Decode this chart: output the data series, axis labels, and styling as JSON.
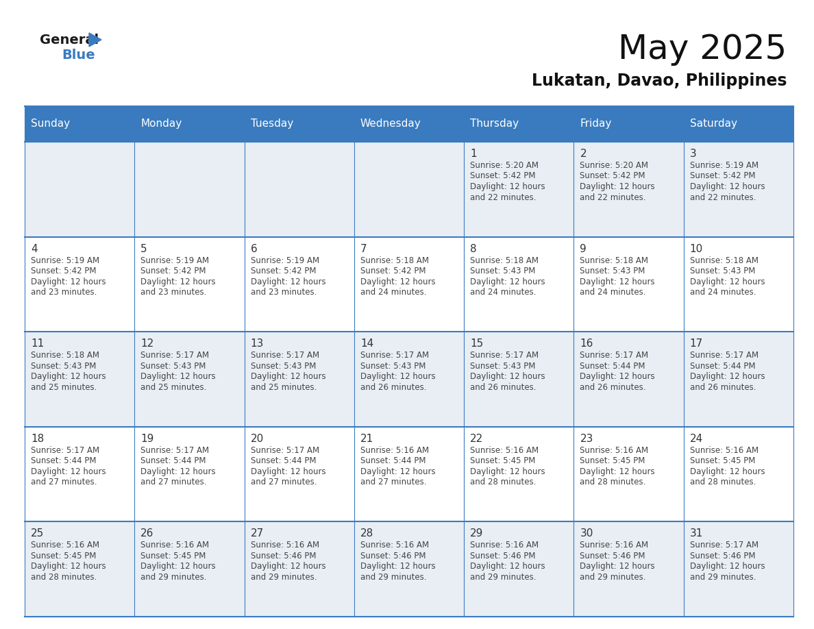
{
  "title": "May 2025",
  "subtitle": "Lukatan, Davao, Philippines",
  "header_bg": "#3a7bbf",
  "header_text": "#ffffff",
  "days_of_week": [
    "Sunday",
    "Monday",
    "Tuesday",
    "Wednesday",
    "Thursday",
    "Friday",
    "Saturday"
  ],
  "row_bg_even": "#e8eef4",
  "row_bg_odd": "#ffffff",
  "cell_border": "#3a7bbf",
  "text_color": "#444444",
  "day_num_color": "#333333",
  "calendar": [
    [
      null,
      null,
      null,
      null,
      {
        "day": 1,
        "sunrise": "5:20 AM",
        "sunset": "5:42 PM",
        "daylight": "12 hours",
        "daylight2": "and 22 minutes."
      },
      {
        "day": 2,
        "sunrise": "5:20 AM",
        "sunset": "5:42 PM",
        "daylight": "12 hours",
        "daylight2": "and 22 minutes."
      },
      {
        "day": 3,
        "sunrise": "5:19 AM",
        "sunset": "5:42 PM",
        "daylight": "12 hours",
        "daylight2": "and 22 minutes."
      }
    ],
    [
      {
        "day": 4,
        "sunrise": "5:19 AM",
        "sunset": "5:42 PM",
        "daylight": "12 hours",
        "daylight2": "and 23 minutes."
      },
      {
        "day": 5,
        "sunrise": "5:19 AM",
        "sunset": "5:42 PM",
        "daylight": "12 hours",
        "daylight2": "and 23 minutes."
      },
      {
        "day": 6,
        "sunrise": "5:19 AM",
        "sunset": "5:42 PM",
        "daylight": "12 hours",
        "daylight2": "and 23 minutes."
      },
      {
        "day": 7,
        "sunrise": "5:18 AM",
        "sunset": "5:42 PM",
        "daylight": "12 hours",
        "daylight2": "and 24 minutes."
      },
      {
        "day": 8,
        "sunrise": "5:18 AM",
        "sunset": "5:43 PM",
        "daylight": "12 hours",
        "daylight2": "and 24 minutes."
      },
      {
        "day": 9,
        "sunrise": "5:18 AM",
        "sunset": "5:43 PM",
        "daylight": "12 hours",
        "daylight2": "and 24 minutes."
      },
      {
        "day": 10,
        "sunrise": "5:18 AM",
        "sunset": "5:43 PM",
        "daylight": "12 hours",
        "daylight2": "and 24 minutes."
      }
    ],
    [
      {
        "day": 11,
        "sunrise": "5:18 AM",
        "sunset": "5:43 PM",
        "daylight": "12 hours",
        "daylight2": "and 25 minutes."
      },
      {
        "day": 12,
        "sunrise": "5:17 AM",
        "sunset": "5:43 PM",
        "daylight": "12 hours",
        "daylight2": "and 25 minutes."
      },
      {
        "day": 13,
        "sunrise": "5:17 AM",
        "sunset": "5:43 PM",
        "daylight": "12 hours",
        "daylight2": "and 25 minutes."
      },
      {
        "day": 14,
        "sunrise": "5:17 AM",
        "sunset": "5:43 PM",
        "daylight": "12 hours",
        "daylight2": "and 26 minutes."
      },
      {
        "day": 15,
        "sunrise": "5:17 AM",
        "sunset": "5:43 PM",
        "daylight": "12 hours",
        "daylight2": "and 26 minutes."
      },
      {
        "day": 16,
        "sunrise": "5:17 AM",
        "sunset": "5:44 PM",
        "daylight": "12 hours",
        "daylight2": "and 26 minutes."
      },
      {
        "day": 17,
        "sunrise": "5:17 AM",
        "sunset": "5:44 PM",
        "daylight": "12 hours",
        "daylight2": "and 26 minutes."
      }
    ],
    [
      {
        "day": 18,
        "sunrise": "5:17 AM",
        "sunset": "5:44 PM",
        "daylight": "12 hours",
        "daylight2": "and 27 minutes."
      },
      {
        "day": 19,
        "sunrise": "5:17 AM",
        "sunset": "5:44 PM",
        "daylight": "12 hours",
        "daylight2": "and 27 minutes."
      },
      {
        "day": 20,
        "sunrise": "5:17 AM",
        "sunset": "5:44 PM",
        "daylight": "12 hours",
        "daylight2": "and 27 minutes."
      },
      {
        "day": 21,
        "sunrise": "5:16 AM",
        "sunset": "5:44 PM",
        "daylight": "12 hours",
        "daylight2": "and 27 minutes."
      },
      {
        "day": 22,
        "sunrise": "5:16 AM",
        "sunset": "5:45 PM",
        "daylight": "12 hours",
        "daylight2": "and 28 minutes."
      },
      {
        "day": 23,
        "sunrise": "5:16 AM",
        "sunset": "5:45 PM",
        "daylight": "12 hours",
        "daylight2": "and 28 minutes."
      },
      {
        "day": 24,
        "sunrise": "5:16 AM",
        "sunset": "5:45 PM",
        "daylight": "12 hours",
        "daylight2": "and 28 minutes."
      }
    ],
    [
      {
        "day": 25,
        "sunrise": "5:16 AM",
        "sunset": "5:45 PM",
        "daylight": "12 hours",
        "daylight2": "and 28 minutes."
      },
      {
        "day": 26,
        "sunrise": "5:16 AM",
        "sunset": "5:45 PM",
        "daylight": "12 hours",
        "daylight2": "and 29 minutes."
      },
      {
        "day": 27,
        "sunrise": "5:16 AM",
        "sunset": "5:46 PM",
        "daylight": "12 hours",
        "daylight2": "and 29 minutes."
      },
      {
        "day": 28,
        "sunrise": "5:16 AM",
        "sunset": "5:46 PM",
        "daylight": "12 hours",
        "daylight2": "and 29 minutes."
      },
      {
        "day": 29,
        "sunrise": "5:16 AM",
        "sunset": "5:46 PM",
        "daylight": "12 hours",
        "daylight2": "and 29 minutes."
      },
      {
        "day": 30,
        "sunrise": "5:16 AM",
        "sunset": "5:46 PM",
        "daylight": "12 hours",
        "daylight2": "and 29 minutes."
      },
      {
        "day": 31,
        "sunrise": "5:17 AM",
        "sunset": "5:46 PM",
        "daylight": "12 hours",
        "daylight2": "and 29 minutes."
      }
    ]
  ]
}
